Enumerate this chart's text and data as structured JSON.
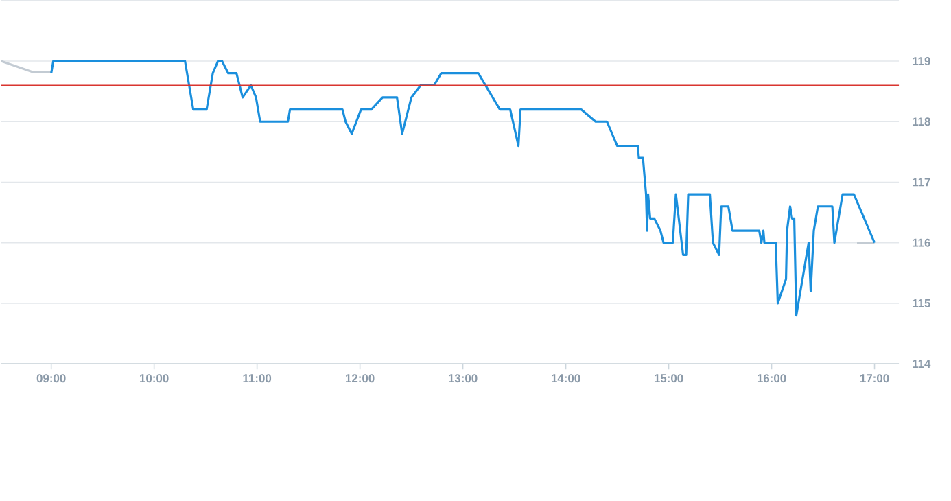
{
  "chart_data": {
    "type": "line",
    "xlim": [
      8.513,
      17.237
    ],
    "ylim": [
      114,
      120
    ],
    "xticks": [
      {
        "value": 9,
        "label": "09:00"
      },
      {
        "value": 10,
        "label": "10:00"
      },
      {
        "value": 11,
        "label": "11:00"
      },
      {
        "value": 12,
        "label": "12:00"
      },
      {
        "value": 13,
        "label": "13:00"
      },
      {
        "value": 14,
        "label": "14:00"
      },
      {
        "value": 15,
        "label": "15:00"
      },
      {
        "value": 16,
        "label": "16:00"
      },
      {
        "value": 17,
        "label": "17:00"
      }
    ],
    "yticks": [
      114,
      115,
      116,
      117,
      118,
      119
    ],
    "grid": "y",
    "ref_lines": [
      {
        "axis": "y",
        "value": 118.6,
        "color": "#d9352f"
      }
    ],
    "series": [
      {
        "color": "#c3cbd3",
        "x": [
          8.513,
          8.82,
          9.0,
          12.0,
          16.83,
          17.0
        ],
        "values": [
          119.0,
          118.82,
          118.82,
          null,
          116.0,
          116.0
        ]
      },
      {
        "color": "#1a8fdd",
        "x": [
          9.0,
          9.02,
          10.3,
          10.38,
          10.51,
          10.57,
          10.62,
          10.66,
          10.72,
          10.8,
          10.86,
          10.94,
          10.99,
          11.03,
          11.3,
          11.32,
          11.83,
          11.86,
          11.92,
          12.01,
          12.11,
          12.22,
          12.36,
          12.41,
          12.5,
          12.59,
          12.72,
          12.79,
          13.15,
          13.36,
          13.46,
          13.54,
          13.56,
          14.15,
          14.29,
          14.4,
          14.5,
          14.7,
          14.71,
          14.75,
          14.78,
          14.79,
          14.8,
          14.82,
          14.86,
          14.92,
          14.95,
          15.04,
          15.07,
          15.14,
          15.17,
          15.19,
          15.4,
          15.43,
          15.49,
          15.51,
          15.58,
          15.62,
          15.88,
          15.9,
          15.92,
          15.93,
          16.04,
          16.06,
          16.14,
          16.15,
          16.18,
          16.2,
          16.22,
          16.24,
          16.36,
          16.38,
          16.41,
          16.45,
          16.59,
          16.61,
          16.69,
          16.8,
          17.0
        ],
        "values": [
          118.8,
          119.0,
          119.0,
          118.2,
          118.2,
          118.8,
          119.0,
          119.0,
          118.8,
          118.8,
          118.4,
          118.6,
          118.4,
          118.0,
          118.0,
          118.2,
          118.2,
          118.0,
          117.8,
          118.2,
          118.2,
          118.4,
          118.4,
          117.8,
          118.4,
          118.6,
          118.6,
          118.8,
          118.8,
          118.2,
          118.2,
          117.6,
          118.2,
          118.2,
          118.0,
          118.0,
          117.6,
          117.6,
          117.4,
          117.4,
          116.8,
          116.2,
          116.8,
          116.4,
          116.4,
          116.2,
          116.0,
          116.0,
          116.8,
          115.8,
          115.8,
          116.8,
          116.8,
          116.0,
          115.8,
          116.6,
          116.6,
          116.2,
          116.2,
          116.0,
          116.2,
          116.0,
          116.0,
          115.0,
          115.4,
          116.2,
          116.6,
          116.4,
          116.4,
          114.8,
          116.0,
          115.2,
          116.2,
          116.6,
          116.6,
          116.0,
          116.8,
          116.8,
          116.0
        ]
      }
    ]
  }
}
